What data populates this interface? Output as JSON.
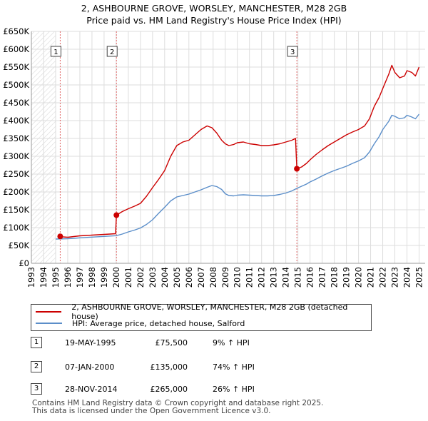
{
  "chart_data": {
    "type": "line",
    "title": "2, ASHBOURNE GROVE, WORSLEY, MANCHESTER, M28 2GB",
    "subtitle": "Price paid vs. HM Land Registry's House Price Index (HPI)",
    "xlabel": "",
    "ylabel": "",
    "xlim": [
      1993,
      2025.5
    ],
    "ylim": [
      0,
      650000
    ],
    "y_ticks": [
      0,
      50000,
      100000,
      150000,
      200000,
      250000,
      300000,
      350000,
      400000,
      450000,
      500000,
      550000,
      600000,
      650000
    ],
    "y_tick_labels": [
      "£0",
      "£50K",
      "£100K",
      "£150K",
      "£200K",
      "£250K",
      "£300K",
      "£350K",
      "£400K",
      "£450K",
      "£500K",
      "£550K",
      "£600K",
      "£650K"
    ],
    "x_ticks": [
      1993,
      1994,
      1995,
      1996,
      1997,
      1998,
      1999,
      2000,
      2001,
      2002,
      2003,
      2004,
      2005,
      2006,
      2007,
      2008,
      2009,
      2010,
      2011,
      2012,
      2013,
      2014,
      2015,
      2016,
      2017,
      2018,
      2019,
      2020,
      2021,
      2022,
      2023,
      2024,
      2025
    ],
    "x_tick_labels": [
      "1993",
      "1994",
      "1995",
      "1996",
      "1997",
      "1998",
      "1999",
      "2000",
      "2001",
      "2002",
      "2003",
      "2004",
      "2005",
      "2006",
      "2007",
      "2008",
      "2009",
      "2010",
      "2011",
      "2012",
      "2013",
      "2014",
      "2015",
      "2016",
      "2017",
      "2018",
      "2019",
      "2020",
      "2021",
      "2022",
      "2023",
      "2024",
      "2025"
    ],
    "grid": true,
    "legend_placement": "below",
    "series": [
      {
        "name": "2, ASHBOURNE GROVE, WORSLEY, MANCHESTER, M28 2GB (detached house)",
        "color": "#cc0000",
        "x": [
          1995.38,
          1995.6,
          1996.0,
          1996.5,
          1997.0,
          1997.5,
          1998.0,
          1998.5,
          1999.0,
          1999.5,
          1999.95,
          2000.02,
          2000.5,
          2001.0,
          2001.5,
          2002.0,
          2002.5,
          2003.0,
          2003.5,
          2004.0,
          2004.5,
          2005.0,
          2005.5,
          2006.0,
          2006.5,
          2007.0,
          2007.5,
          2007.9,
          2008.3,
          2008.7,
          2009.0,
          2009.3,
          2009.7,
          2010.0,
          2010.5,
          2011.0,
          2011.5,
          2012.0,
          2012.5,
          2013.0,
          2013.5,
          2014.0,
          2014.5,
          2014.8,
          2014.91,
          2015.3,
          2015.7,
          2016.0,
          2016.5,
          2017.0,
          2017.5,
          2018.0,
          2018.5,
          2019.0,
          2019.5,
          2020.0,
          2020.5,
          2020.9,
          2021.3,
          2021.7,
          2022.0,
          2022.5,
          2022.75,
          2023.0,
          2023.4,
          2023.8,
          2024.0,
          2024.4,
          2024.7,
          2025.0
        ],
        "values": [
          75500,
          74000,
          73000,
          75000,
          77000,
          78000,
          79000,
          80000,
          81000,
          82000,
          83000,
          135000,
          145000,
          153000,
          160000,
          168000,
          188000,
          212000,
          235000,
          260000,
          300000,
          330000,
          340000,
          345000,
          360000,
          375000,
          385000,
          380000,
          365000,
          345000,
          335000,
          330000,
          333000,
          338000,
          340000,
          335000,
          333000,
          330000,
          330000,
          332000,
          335000,
          340000,
          345000,
          350000,
          265000,
          270000,
          280000,
          290000,
          305000,
          318000,
          330000,
          340000,
          350000,
          360000,
          368000,
          375000,
          385000,
          405000,
          440000,
          465000,
          490000,
          530000,
          555000,
          535000,
          520000,
          525000,
          540000,
          535000,
          525000,
          550000
        ]
      },
      {
        "name": "HPI: Average price, detached house, Salford",
        "color": "#5b8ec9",
        "x": [
          1995.0,
          1995.5,
          1996.0,
          1996.5,
          1997.0,
          1997.5,
          1998.0,
          1998.5,
          1999.0,
          1999.5,
          2000.0,
          2000.5,
          2001.0,
          2001.5,
          2002.0,
          2002.5,
          2003.0,
          2003.5,
          2004.0,
          2004.5,
          2005.0,
          2005.5,
          2006.0,
          2006.5,
          2007.0,
          2007.5,
          2007.9,
          2008.3,
          2008.7,
          2009.0,
          2009.3,
          2009.7,
          2010.0,
          2010.5,
          2011.0,
          2011.5,
          2012.0,
          2012.5,
          2013.0,
          2013.5,
          2014.0,
          2014.5,
          2014.91,
          2015.3,
          2015.7,
          2016.0,
          2016.5,
          2017.0,
          2017.5,
          2018.0,
          2018.5,
          2019.0,
          2019.5,
          2020.0,
          2020.5,
          2020.9,
          2021.3,
          2021.7,
          2022.0,
          2022.5,
          2022.75,
          2023.0,
          2023.4,
          2023.8,
          2024.0,
          2024.4,
          2024.7,
          2025.0
        ],
        "values": [
          68000,
          68500,
          69000,
          70000,
          71500,
          72500,
          73500,
          74500,
          75500,
          76500,
          77500,
          82000,
          88000,
          93000,
          99000,
          109000,
          122000,
          140000,
          157000,
          175000,
          186000,
          190000,
          194000,
          200000,
          206000,
          213000,
          218000,
          215000,
          207000,
          195000,
          190000,
          189000,
          191000,
          192000,
          191000,
          190000,
          189000,
          189000,
          190000,
          193000,
          197000,
          203000,
          210000,
          216000,
          222000,
          228000,
          236000,
          245000,
          253000,
          260000,
          266000,
          272000,
          280000,
          287000,
          296000,
          312000,
          335000,
          355000,
          375000,
          398000,
          415000,
          412000,
          405000,
          408000,
          415000,
          410000,
          405000,
          418000
        ]
      }
    ],
    "sales": [
      {
        "label": "1",
        "x": 1995.38,
        "value": 75500
      },
      {
        "label": "2",
        "x": 2000.02,
        "value": 135000
      },
      {
        "label": "3",
        "x": 2014.91,
        "value": 265000
      }
    ],
    "hatch_before": 1995.0
  },
  "legend": {
    "property_label": "2, ASHBOURNE GROVE, WORSLEY, MANCHESTER, M28 2GB (detached house)",
    "hpi_label": "HPI: Average price, detached house, Salford",
    "property_color": "#cc0000",
    "hpi_color": "#5b8ec9"
  },
  "transactions": [
    {
      "num": "1",
      "date": "19-MAY-1995",
      "price": "£75,500",
      "hpi": "9% ↑ HPI"
    },
    {
      "num": "2",
      "date": "07-JAN-2000",
      "price": "£135,000",
      "hpi": "74% ↑ HPI"
    },
    {
      "num": "3",
      "date": "28-NOV-2014",
      "price": "£265,000",
      "hpi": "26% ↑ HPI"
    }
  ],
  "footer": {
    "line1": "Contains HM Land Registry data © Crown copyright and database right 2025.",
    "line2": "This data is licensed under the Open Government Licence v3.0."
  }
}
